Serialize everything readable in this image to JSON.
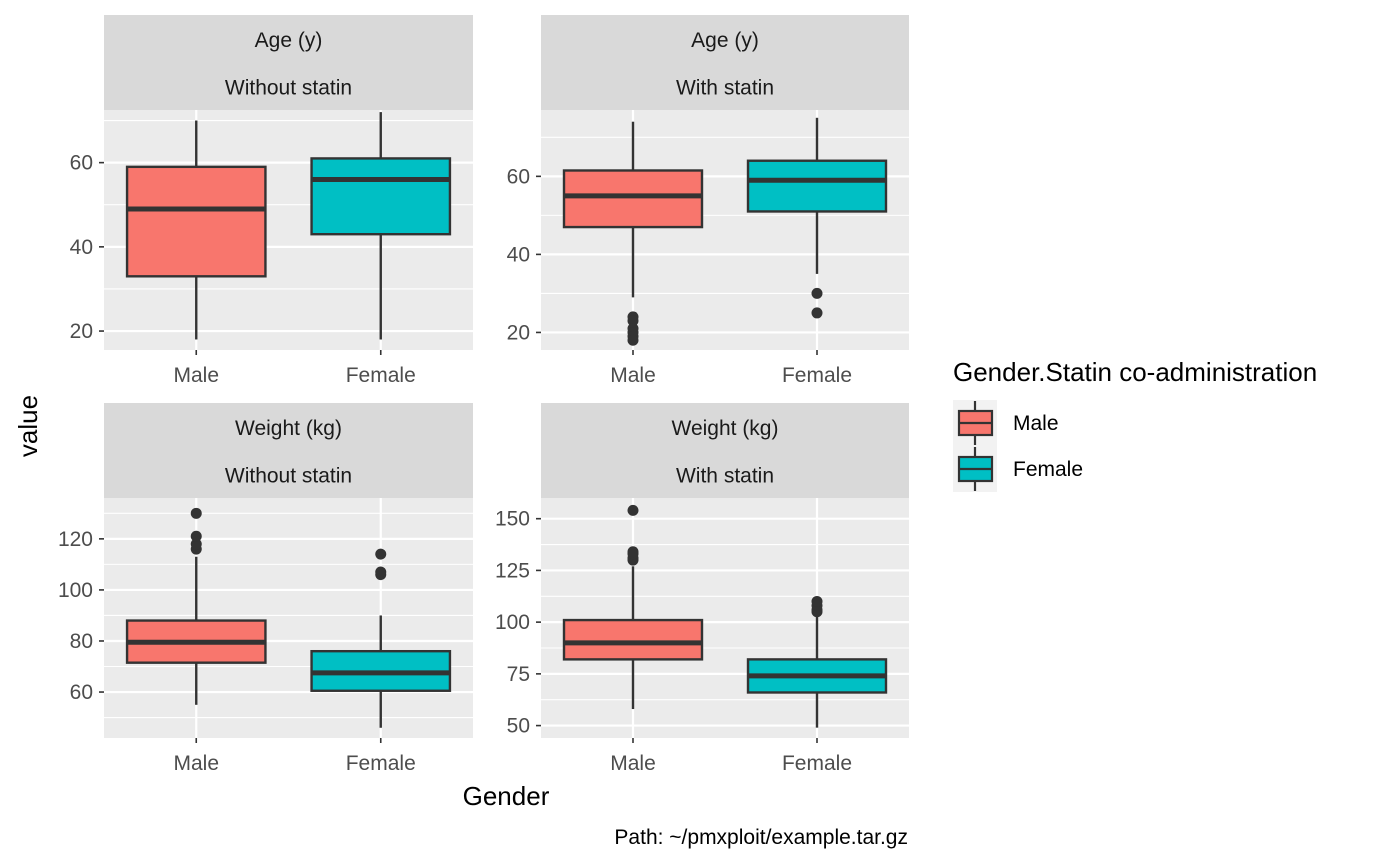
{
  "chart_data": {
    "type": "boxplot",
    "xlabel": "Gender",
    "ylabel": "value",
    "caption": "Path: ~/pmxploit/example.tar.gz",
    "legend": {
      "title": "Gender.Statin co-administration",
      "placement": "right",
      "entries": [
        {
          "label": "Male",
          "color": "#F8766D"
        },
        {
          "label": "Female",
          "color": "#00BFC4"
        }
      ]
    },
    "categories": [
      "Male",
      "Female"
    ],
    "panels": [
      {
        "strip": [
          "Age (y)",
          "Without statin"
        ],
        "ylim": [
          15.5,
          72.5
        ],
        "yticks": [
          20,
          40,
          60
        ],
        "boxes": [
          {
            "category": "Male",
            "min": 18,
            "q1": 33,
            "median": 49,
            "q3": 59,
            "max": 70,
            "outliers": []
          },
          {
            "category": "Female",
            "min": 18,
            "q1": 43,
            "median": 56,
            "q3": 61,
            "max": 72,
            "outliers": []
          }
        ]
      },
      {
        "strip": [
          "Age (y)",
          "With statin"
        ],
        "ylim": [
          15.5,
          77
        ],
        "yticks": [
          20,
          40,
          60
        ],
        "boxes": [
          {
            "category": "Male",
            "min": 29,
            "q1": 47,
            "median": 55,
            "q3": 61.5,
            "max": 74,
            "outliers": [
              24,
              23,
              21,
              20,
              19,
              18
            ]
          },
          {
            "category": "Female",
            "min": 35,
            "q1": 51,
            "median": 59,
            "q3": 64,
            "max": 75,
            "outliers": [
              30,
              25
            ]
          }
        ]
      },
      {
        "strip": [
          "Weight (kg)",
          "Without statin"
        ],
        "ylim": [
          42,
          136
        ],
        "yticks": [
          60,
          80,
          100,
          120
        ],
        "boxes": [
          {
            "category": "Male",
            "min": 55,
            "q1": 71.5,
            "median": 79.5,
            "q3": 88,
            "max": 113,
            "outliers": [
              116,
              118,
              121,
              130
            ]
          },
          {
            "category": "Female",
            "min": 46,
            "q1": 60.5,
            "median": 67.5,
            "q3": 76,
            "max": 90,
            "outliers": [
              106,
              107,
              114
            ]
          }
        ]
      },
      {
        "strip": [
          "Weight (kg)",
          "With statin"
        ],
        "ylim": [
          44,
          160
        ],
        "yticks": [
          50,
          75,
          100,
          125,
          150
        ],
        "boxes": [
          {
            "category": "Male",
            "min": 58,
            "q1": 82,
            "median": 90,
            "q3": 101,
            "max": 127,
            "outliers": [
              130,
              131,
              133,
              134,
              154
            ]
          },
          {
            "category": "Female",
            "min": 49,
            "q1": 66,
            "median": 74,
            "q3": 82,
            "max": 104,
            "outliers": [
              105,
              106,
              108,
              110
            ]
          }
        ]
      }
    ]
  }
}
